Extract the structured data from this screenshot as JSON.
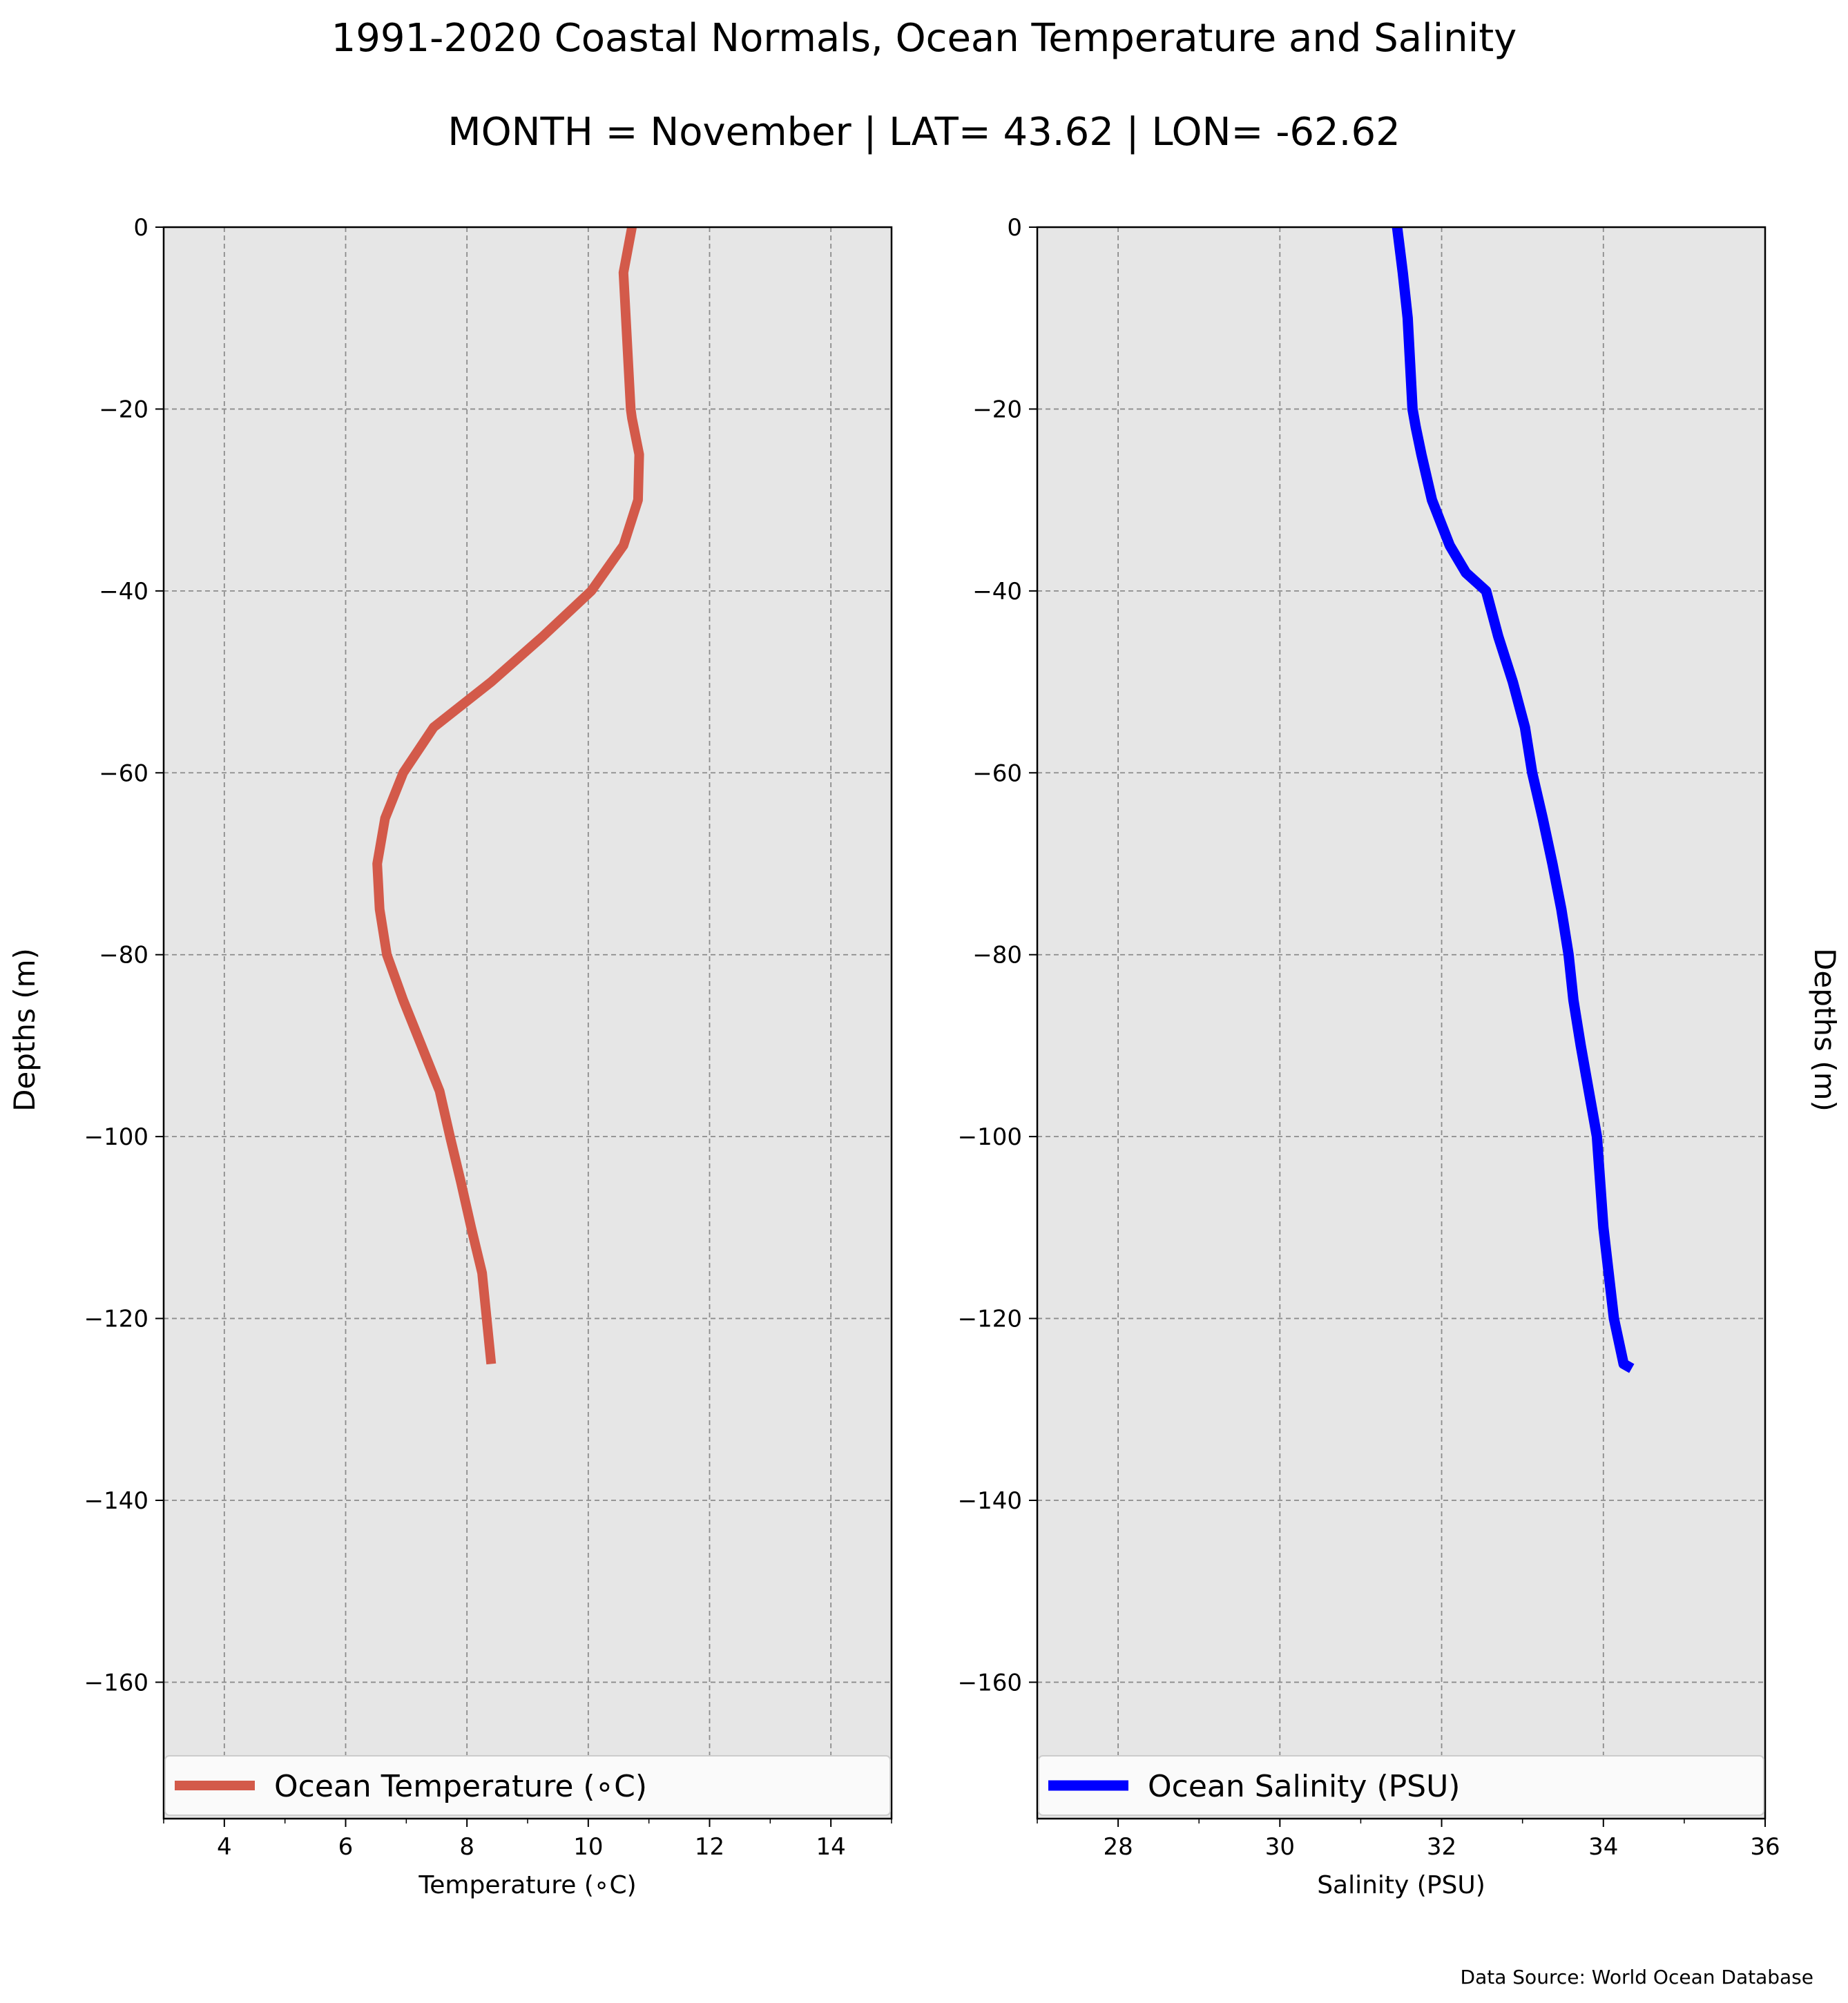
{
  "title": "1991-2020 Coastal Normals, Ocean Temperature and Salinity",
  "subtitle": "MONTH = November | LAT= 43.62 | LON= -62.62",
  "source": "Data Source: World Ocean Database",
  "chart_data": [
    {
      "type": "line",
      "xlabel": "Temperature ($^\\circ$C)",
      "xlabel_display": "Temperature (∘C)",
      "ylabel": "Depths (m)",
      "xlim": [
        3,
        15
      ],
      "ylim": [
        -175,
        0
      ],
      "xticks": [
        4,
        6,
        8,
        10,
        12,
        14
      ],
      "yticks": [
        0,
        -20,
        -40,
        -60,
        -80,
        -100,
        -120,
        -140,
        -160
      ],
      "grid": true,
      "legend_position": "bottom",
      "series": [
        {
          "name": "Ocean Temperature (∘C)",
          "color": "#d35a4a",
          "x": [
            10.72,
            10.58,
            10.62,
            10.66,
            10.7,
            10.72,
            10.84,
            10.82,
            10.58,
            10.05,
            9.25,
            8.4,
            7.45,
            6.95,
            6.65,
            6.52,
            6.56,
            6.68,
            6.95,
            7.25,
            7.55,
            7.72,
            7.9,
            8.07,
            8.25,
            8.4
          ],
          "y": [
            0,
            -5,
            -10,
            -15,
            -20,
            -21,
            -25,
            -30,
            -35,
            -40,
            -45,
            -50,
            -55,
            -60,
            -65,
            -70,
            -75,
            -80,
            -85,
            -90,
            -95,
            -100,
            -105,
            -110,
            -115,
            -125
          ]
        }
      ]
    },
    {
      "type": "line",
      "xlabel": "Salinity (PSU)",
      "ylabel": "Depths (m)",
      "xlim": [
        27,
        36
      ],
      "ylim": [
        -175,
        0
      ],
      "xticks": [
        28,
        30,
        32,
        34,
        36
      ],
      "yticks": [
        0,
        -20,
        -40,
        -60,
        -80,
        -100,
        -120,
        -140,
        -160
      ],
      "grid": true,
      "legend_position": "bottom",
      "series": [
        {
          "name": "Ocean Salinity (PSU)",
          "color": "#0000ff",
          "x": [
            31.45,
            31.52,
            31.58,
            31.61,
            31.64,
            31.68,
            31.75,
            31.88,
            32.1,
            32.3,
            32.55,
            32.7,
            32.88,
            33.03,
            33.12,
            33.25,
            33.37,
            33.48,
            33.57,
            33.63,
            33.72,
            33.82,
            33.92,
            34.0,
            34.13,
            34.25,
            34.35
          ],
          "y": [
            0,
            -5,
            -10,
            -15,
            -20,
            -22,
            -25,
            -30,
            -35,
            -38,
            -40,
            -45,
            -50,
            -55,
            -60,
            -65,
            -70,
            -75,
            -80,
            -85,
            -90,
            -95,
            -100,
            -110,
            -120,
            -125,
            -125.5
          ]
        }
      ]
    }
  ]
}
